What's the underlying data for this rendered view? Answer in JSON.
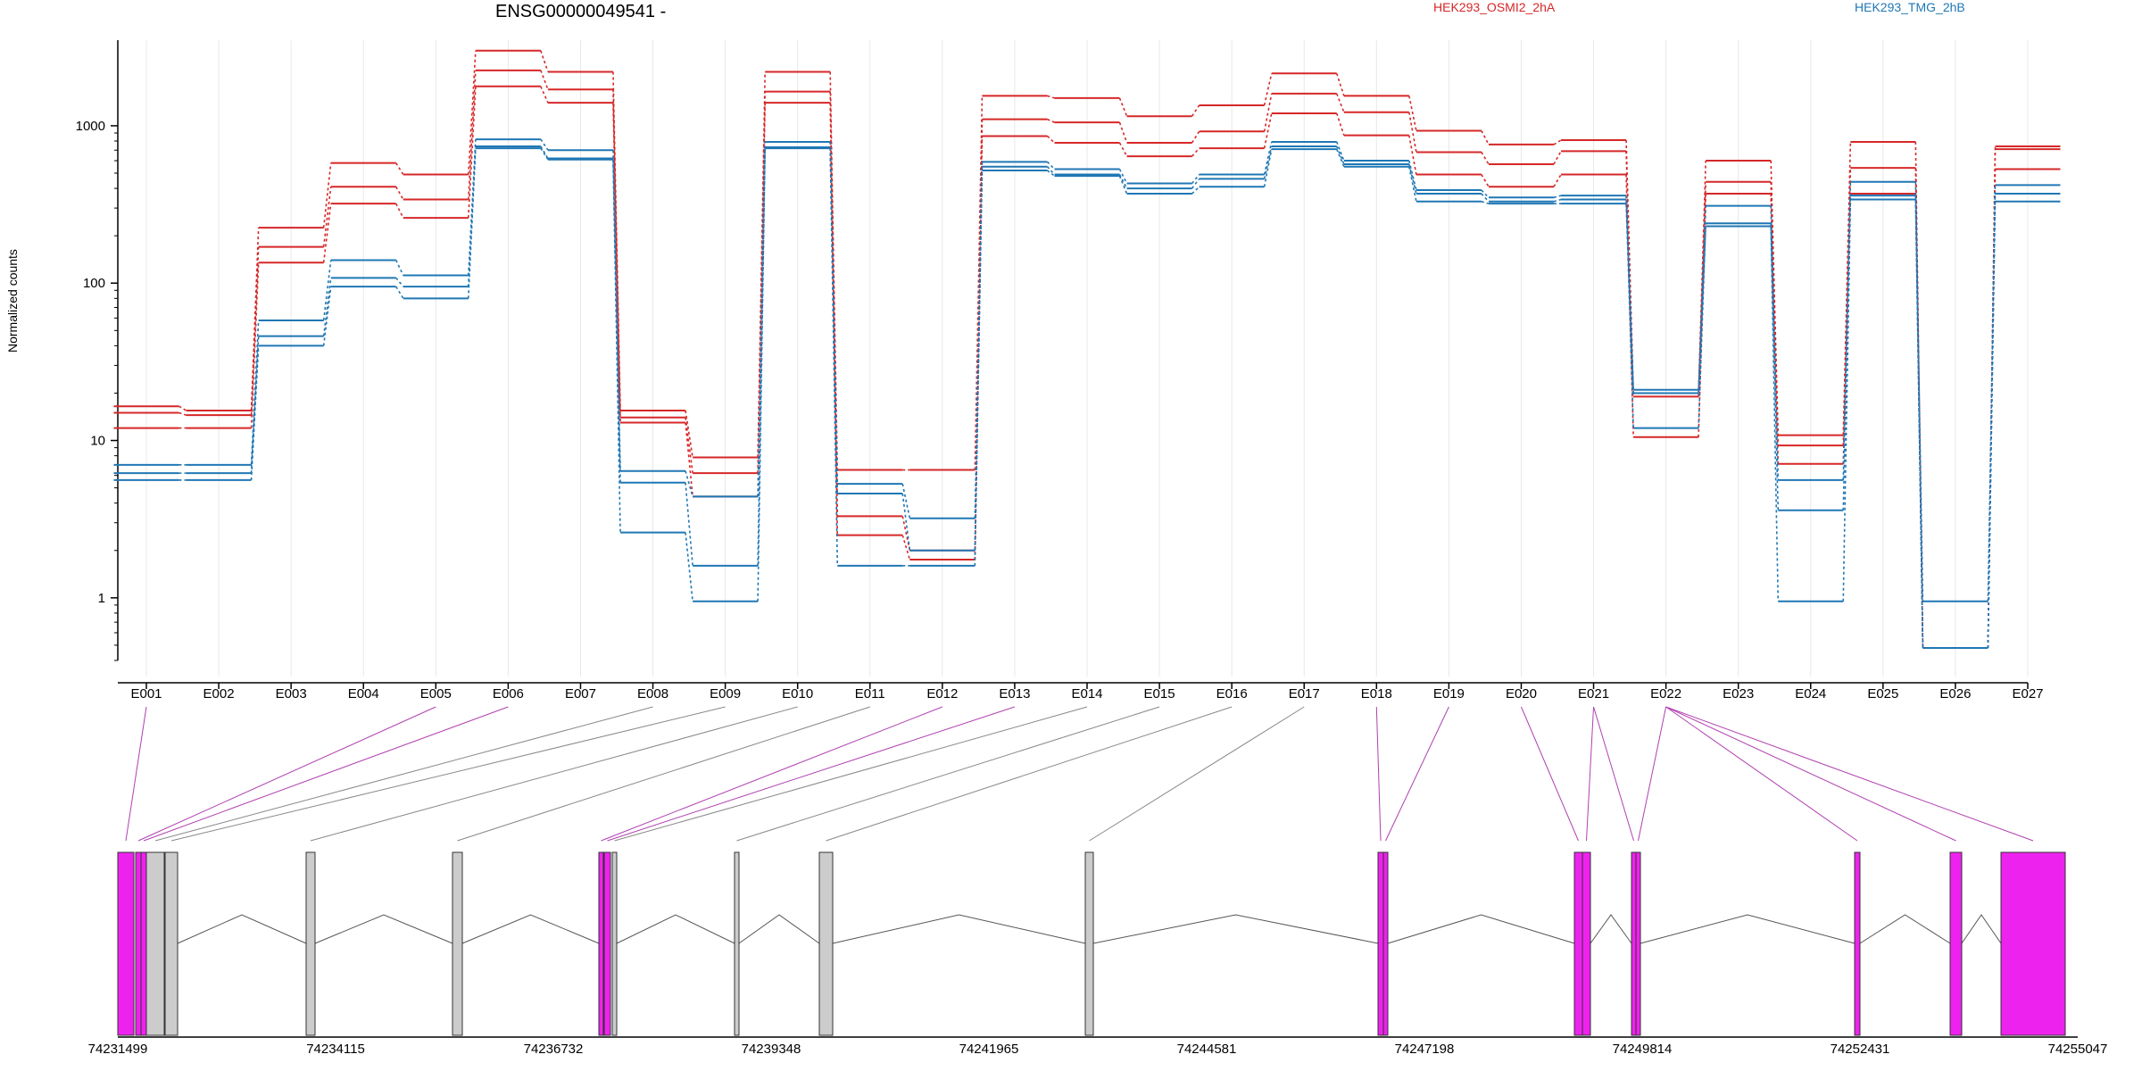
{
  "chart_data": {
    "type": "line",
    "title": "ENSG00000049541 -",
    "ylabel": "Normalized counts",
    "yscale": "log",
    "ylim": [
      0.4,
      3500
    ],
    "yticks": [
      1,
      10,
      100,
      1000
    ],
    "ytick_labels": [
      "1",
      "10",
      "100",
      "1000"
    ],
    "grid": "vertical",
    "legend_position": "top",
    "categories": [
      "E001",
      "E002",
      "E003",
      "E004",
      "E005",
      "E006",
      "E007",
      "E008",
      "E009",
      "E010",
      "E011",
      "E012",
      "E013",
      "E014",
      "E015",
      "E016",
      "E017",
      "E018",
      "E019",
      "E020",
      "E021",
      "E022",
      "E023",
      "E024",
      "E025",
      "E026",
      "E027"
    ],
    "series": [
      {
        "group": "HEK293_OSMI2_2hA",
        "color": "#d62728",
        "values": [
          16.5,
          15.5,
          225,
          580,
          490,
          3000,
          2200,
          15.5,
          7.8,
          2200,
          6.5,
          6.5,
          1550,
          1500,
          1150,
          1350,
          2150,
          1550,
          930,
          760,
          810,
          20,
          600,
          10.8,
          790,
          0.48,
          740
        ]
      },
      {
        "group": "HEK293_OSMI2_2hA",
        "color": "#d62728",
        "values": [
          15,
          14.5,
          170,
          410,
          340,
          2250,
          1700,
          14,
          6.2,
          1650,
          3.3,
          2.0,
          1100,
          1050,
          780,
          920,
          1600,
          1220,
          680,
          570,
          690,
          19,
          440,
          9.3,
          540,
          0.48,
          530
        ]
      },
      {
        "group": "HEK293_OSMI2_2hA",
        "color": "#d62728",
        "values": [
          12,
          12,
          135,
          320,
          260,
          1780,
          1400,
          13,
          4.4,
          1400,
          2.5,
          1.75,
          860,
          780,
          640,
          720,
          1200,
          870,
          490,
          410,
          490,
          10.5,
          370,
          7.1,
          370,
          0.48,
          710
        ]
      },
      {
        "group": "HEK293_TMG_2hB",
        "color": "#1f77b4",
        "values": [
          7,
          7,
          58,
          140,
          112,
          820,
          700,
          6.4,
          4.4,
          790,
          5.3,
          3.2,
          590,
          530,
          430,
          490,
          790,
          600,
          390,
          350,
          360,
          21,
          310,
          5.6,
          440,
          0.95,
          420
        ]
      },
      {
        "group": "HEK293_TMG_2hB",
        "color": "#1f77b4",
        "values": [
          6.2,
          6.2,
          46,
          108,
          95,
          740,
          620,
          5.4,
          1.6,
          730,
          4.6,
          2.0,
          550,
          490,
          400,
          460,
          740,
          570,
          370,
          330,
          340,
          12,
          240,
          3.6,
          360,
          0.48,
          370
        ]
      },
      {
        "group": "HEK293_TMG_2hB",
        "color": "#1f77b4",
        "values": [
          5.6,
          5.6,
          40,
          95,
          80,
          720,
          610,
          2.6,
          0.95,
          720,
          1.6,
          1.6,
          520,
          480,
          370,
          410,
          710,
          550,
          330,
          320,
          320,
          20,
          230,
          0.95,
          340,
          0.48,
          330
        ]
      }
    ],
    "genomic_ticks": [
      "74231499",
      "74234115",
      "74236732",
      "74239348",
      "74241965",
      "74244581",
      "74247198",
      "74249814",
      "74252431",
      "74255047"
    ],
    "colors": {
      "series_a": "#d62728",
      "series_b": "#1f77b4",
      "exon_highlight": "#ee22ee",
      "exon_plain": "#cccccc",
      "connector_highlight": "#b040b0",
      "connector_plain": "#888888",
      "grid": "#e8e8e8"
    }
  },
  "legend": [
    {
      "label": "HEK293_OSMI2_2hA",
      "color": "#d62728"
    },
    {
      "label": "HEK293_TMG_2hB",
      "color": "#1f77b4"
    }
  ],
  "gene_model": {
    "exons": [
      {
        "id": "E001",
        "highlight": true
      },
      {
        "id": "E002",
        "highlight": false
      },
      {
        "id": "E003",
        "highlight": true
      },
      {
        "id": "E004",
        "highlight": true
      },
      {
        "id": "E005",
        "highlight": true
      },
      {
        "id": "E006",
        "highlight": true
      },
      {
        "id": "E007",
        "highlight": true
      },
      {
        "id": "E008",
        "highlight": false
      },
      {
        "id": "E009",
        "highlight": false
      },
      {
        "id": "E010",
        "highlight": false
      },
      {
        "id": "E011",
        "highlight": false
      },
      {
        "id": "E012",
        "highlight": true
      },
      {
        "id": "E013",
        "highlight": true
      },
      {
        "id": "E014",
        "highlight": false
      },
      {
        "id": "E015",
        "highlight": false
      },
      {
        "id": "E016",
        "highlight": false
      },
      {
        "id": "E017",
        "highlight": false
      },
      {
        "id": "E018",
        "highlight": true
      },
      {
        "id": "E019",
        "highlight": true
      },
      {
        "id": "E020",
        "highlight": true
      },
      {
        "id": "E021",
        "highlight": true
      },
      {
        "id": "E022",
        "highlight": true
      },
      {
        "id": "E023",
        "highlight": false
      },
      {
        "id": "E024",
        "highlight": false
      },
      {
        "id": "E025",
        "highlight": true
      },
      {
        "id": "E026",
        "highlight": false
      },
      {
        "id": "E027",
        "highlight": true
      }
    ]
  }
}
